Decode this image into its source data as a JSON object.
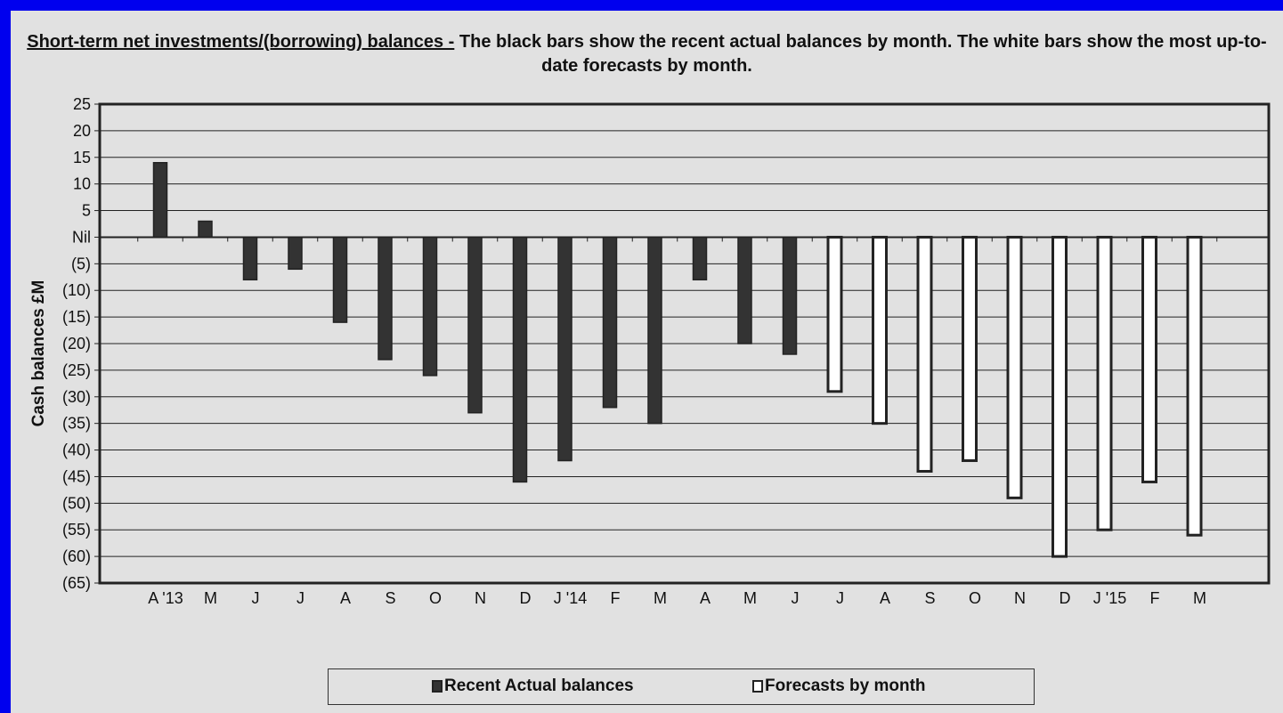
{
  "chart_data": {
    "type": "bar",
    "title_underlined": "Short-term net investments/(borrowing) balances -",
    "title_rest": " The black bars show the recent actual balances by month. The white bars show the most up-to-date forecasts by month.",
    "ylabel": "Cash balances £M",
    "xlabel": "",
    "ylim": [
      -65,
      25
    ],
    "y_ticks": [
      "25",
      "20",
      "15",
      "10",
      "5",
      "Nil",
      "(5)",
      "(10)",
      "(15)",
      "(20)",
      "(25)",
      "(30)",
      "(35)",
      "(40)",
      "(45)",
      "(50)",
      "(55)",
      "(60)",
      "(65)"
    ],
    "categories": [
      "A '13",
      "M",
      "J",
      "J",
      "A",
      "S",
      "O",
      "N",
      "D",
      "J '14",
      "F",
      "M",
      "A",
      "M",
      "J",
      "J",
      "A",
      "S",
      "O",
      "N",
      "D",
      "J '15",
      "F",
      "M"
    ],
    "series": [
      {
        "name": "Recent Actual balances",
        "color": "#333333",
        "values": [
          14,
          3,
          -8,
          -6,
          -16,
          -23,
          -26,
          -33,
          -46,
          -42,
          -32,
          -35,
          -8,
          -20,
          -22,
          null,
          null,
          null,
          null,
          null,
          null,
          null,
          null,
          null
        ]
      },
      {
        "name": "Forecasts by month",
        "color": "#ffffff",
        "values": [
          null,
          null,
          null,
          null,
          null,
          null,
          null,
          null,
          null,
          null,
          null,
          null,
          null,
          null,
          null,
          -29,
          -35,
          -44,
          -42,
          -49,
          -60,
          -55,
          -46,
          -56
        ]
      }
    ],
    "grid": true,
    "legend_position": "bottom"
  }
}
